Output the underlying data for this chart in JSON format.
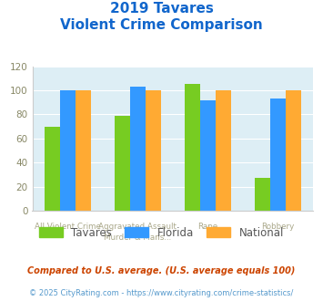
{
  "title_line1": "2019 Tavares",
  "title_line2": "Violent Crime Comparison",
  "cat_labels_top": [
    "",
    "Aggravated Assault",
    "",
    ""
  ],
  "cat_labels_bottom": [
    "All Violent Crime",
    "Murder & Mans...",
    "Rape",
    "Robbery"
  ],
  "series": {
    "Tavares": [
      70,
      79,
      105,
      27
    ],
    "Florida": [
      100,
      103,
      92,
      93
    ],
    "National": [
      100,
      100,
      100,
      100
    ]
  },
  "colors": {
    "Tavares": "#77cc22",
    "Florida": "#3399ff",
    "National": "#ffaa33"
  },
  "ylim": [
    0,
    120
  ],
  "yticks": [
    0,
    20,
    40,
    60,
    80,
    100,
    120
  ],
  "title_color": "#1166cc",
  "axis_label_color": "#aaa88a",
  "footnote1": "Compared to U.S. average. (U.S. average equals 100)",
  "footnote2": "© 2025 CityRating.com - https://www.cityrating.com/crime-statistics/",
  "footnote1_color": "#cc4400",
  "footnote2_color": "#5599cc",
  "bg_color": "#ffffff",
  "plot_bg_color": "#ddeef5"
}
